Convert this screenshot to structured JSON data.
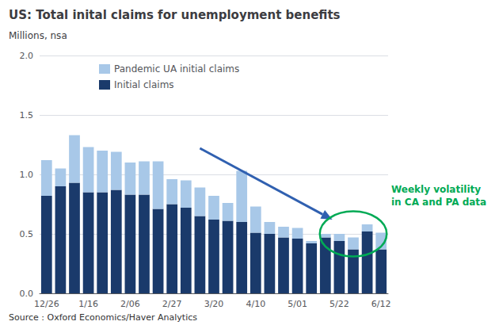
{
  "chart_data": {
    "type": "bar",
    "title": "US: Total inital claims for unemployment benefits",
    "ylabel": "Millions, nsa",
    "source": "Source : Oxford Economics/Haver Analytics",
    "categories": [
      "12/26",
      null,
      null,
      "1/16",
      null,
      null,
      "2/06",
      null,
      null,
      "2/27",
      null,
      null,
      "3/20",
      null,
      null,
      "4/10",
      null,
      null,
      "5/01",
      null,
      null,
      "5/22",
      null,
      null,
      "6/12"
    ],
    "series": [
      {
        "name": "Initial claims",
        "color": "#1a3a6b",
        "values": [
          0.82,
          0.9,
          0.93,
          0.85,
          0.85,
          0.87,
          0.83,
          0.83,
          0.71,
          0.75,
          0.72,
          0.65,
          0.62,
          0.61,
          0.6,
          0.51,
          0.5,
          0.47,
          0.46,
          0.42,
          0.47,
          0.44,
          0.37,
          0.52,
          0.37
        ]
      },
      {
        "name": "Pandemic UA initial claims",
        "color": "#a8c8e8",
        "values": [
          0.3,
          0.15,
          0.4,
          0.38,
          0.35,
          0.32,
          0.27,
          0.28,
          0.4,
          0.21,
          0.23,
          0.24,
          0.2,
          0.15,
          0.43,
          0.22,
          0.1,
          0.09,
          0.09,
          0.02,
          0.03,
          0.06,
          0.1,
          0.06,
          0.14
        ]
      }
    ],
    "stacked": true,
    "ylim": [
      0,
      2.0
    ],
    "yticks": [
      {
        "value": 0,
        "label": "0.0"
      },
      0.5,
      {
        "value": 1,
        "label": "1.0"
      },
      1.5,
      {
        "value": 2,
        "label": "2.0"
      }
    ],
    "grid": true,
    "legend": "top",
    "annotations": [
      {
        "type": "arrow",
        "color": "#3060b0"
      },
      {
        "type": "ellipse",
        "color": "#00aa55"
      },
      {
        "type": "text",
        "text": "Weekly volatility\nin CA and PA data",
        "color": "#00aa55"
      }
    ]
  }
}
